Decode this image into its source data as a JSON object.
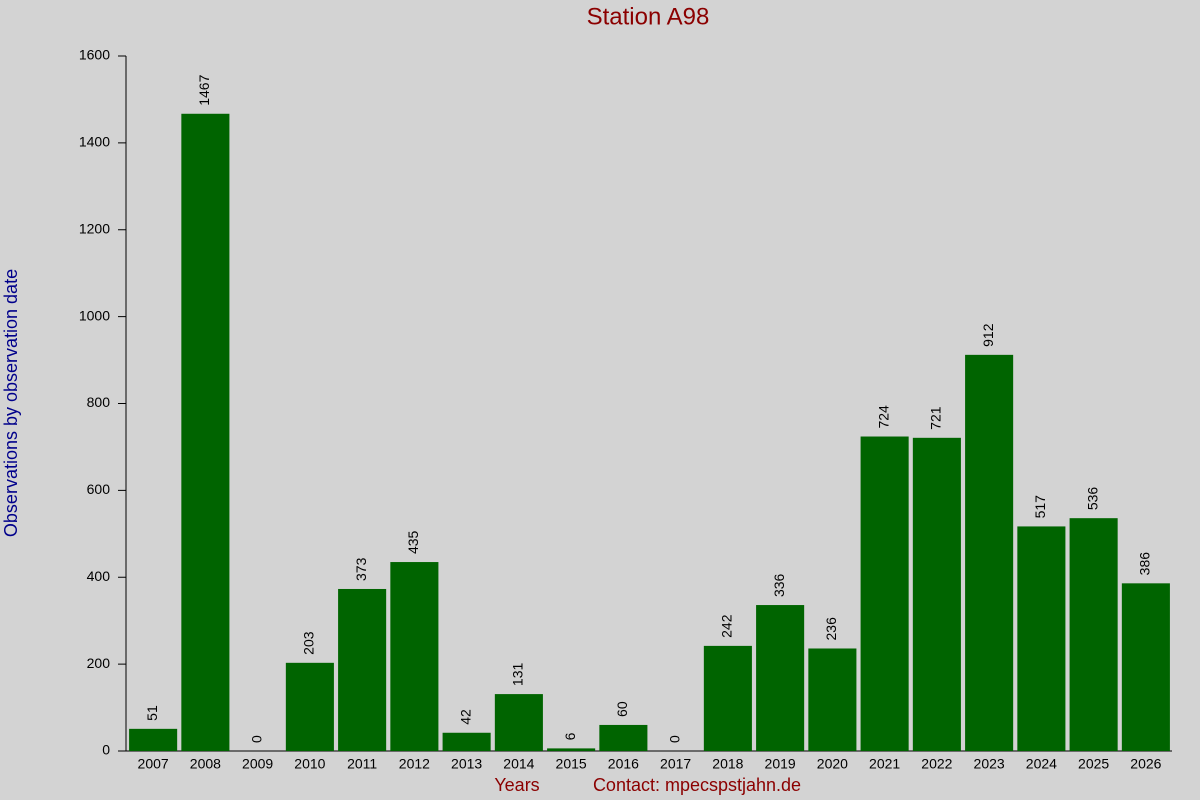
{
  "chart_data": {
    "type": "bar",
    "title": "Station A98",
    "y_label": "Observations by observation date",
    "x_label": "Years",
    "footer": "Contact: mpecspstjahn.de",
    "categories": [
      "2007",
      "2008",
      "2009",
      "2010",
      "2011",
      "2012",
      "2013",
      "2014",
      "2015",
      "2016",
      "2017",
      "2018",
      "2019",
      "2020",
      "2021",
      "2022",
      "2023",
      "2024",
      "2025",
      "2026"
    ],
    "values": [
      51,
      1467,
      0,
      203,
      373,
      435,
      42,
      131,
      6,
      60,
      0,
      242,
      336,
      236,
      724,
      721,
      912,
      517,
      536,
      386
    ],
    "color": "#006400",
    "ylim": [
      0,
      1600
    ],
    "yticks": [
      0,
      200,
      400,
      600,
      800,
      1000,
      1200,
      1400,
      1600
    ]
  }
}
